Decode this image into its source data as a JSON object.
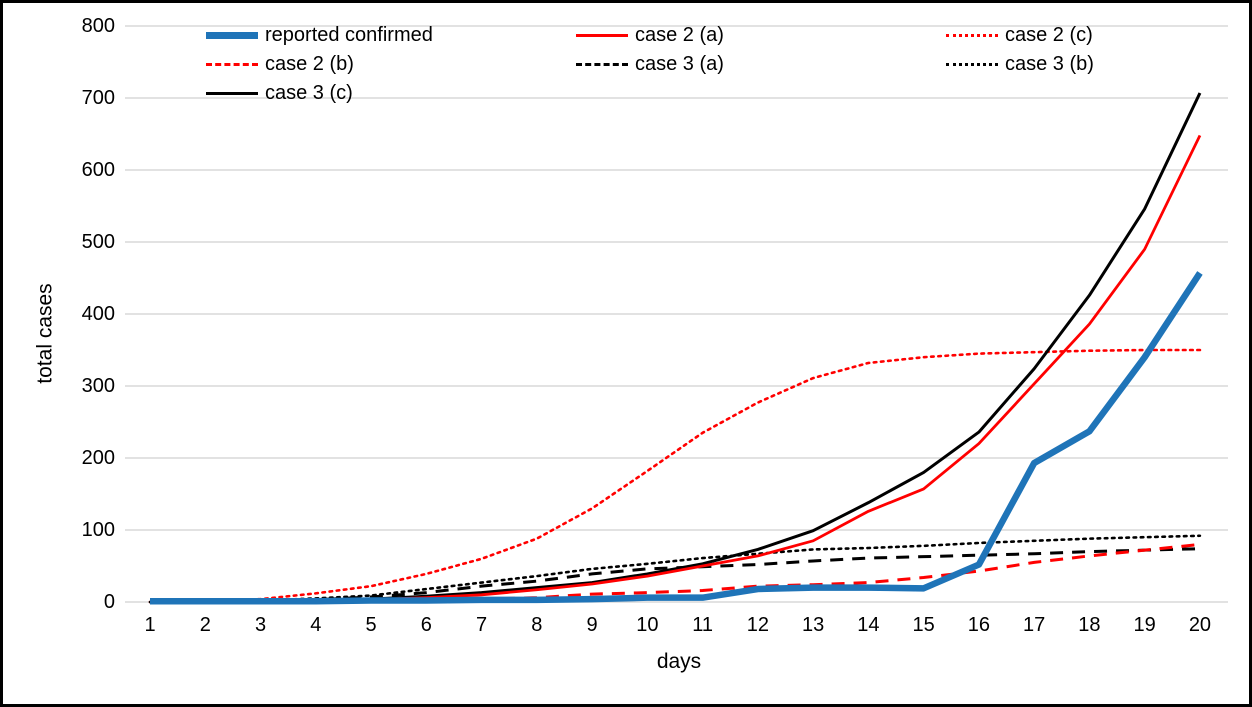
{
  "chart_data": {
    "type": "line",
    "title": "",
    "xlabel": "days",
    "ylabel": "total cases",
    "x_ticks": [
      1,
      2,
      3,
      4,
      5,
      6,
      7,
      8,
      9,
      10,
      11,
      12,
      13,
      14,
      15,
      16,
      17,
      18,
      19,
      20
    ],
    "y_ticks": [
      0,
      100,
      200,
      300,
      400,
      500,
      600,
      700,
      800
    ],
    "ylim": [
      0,
      800
    ],
    "xlim": [
      1,
      20
    ],
    "grid": "horizontal",
    "legend_position": "top-inside",
    "colors": {
      "blue": "#1F74B8",
      "red": "#FF0000",
      "black": "#000000",
      "gridline": "#D9D9D9"
    },
    "series": [
      {
        "name": "case 2 (c)",
        "color": "#FF0000",
        "line_style": "dotted",
        "line_width": 2.6,
        "legend": {
          "col": 2,
          "row": 0
        },
        "values": [
          0,
          1,
          4,
          12,
          22,
          39,
          60,
          88,
          130,
          182,
          235,
          277,
          311,
          332,
          340,
          345,
          347,
          349,
          350,
          350
        ]
      },
      {
        "name": "case 3 (b)",
        "color": "#000000",
        "line_style": "dotted",
        "line_width": 2.6,
        "legend": {
          "col": 2,
          "row": 1
        },
        "values": [
          0,
          1,
          2,
          5,
          9,
          18,
          27,
          36,
          46,
          53,
          61,
          67,
          73,
          75,
          78,
          82,
          85,
          88,
          90,
          92
        ]
      },
      {
        "name": "case 3 (a)",
        "color": "#000000",
        "line_style": "dashed",
        "line_width": 3,
        "legend": {
          "col": 1,
          "row": 1
        },
        "values": [
          0,
          0,
          1,
          3,
          7,
          13,
          22,
          29,
          39,
          46,
          49,
          52,
          57,
          61,
          63,
          65,
          67,
          70,
          72,
          74
        ]
      },
      {
        "name": "case 2 (b)",
        "color": "#FF0000",
        "line_style": "dashed",
        "line_width": 3,
        "legend": {
          "col": 0,
          "row": 1
        },
        "values": [
          0,
          0,
          0,
          1,
          2,
          3,
          4,
          6,
          11,
          13,
          16,
          22,
          24,
          27,
          34,
          43,
          55,
          64,
          72,
          80
        ]
      },
      {
        "name": "case 3 (c)",
        "color": "#000000",
        "line_style": "solid",
        "line_width": 3,
        "legend": {
          "col": 0,
          "row": 2
        },
        "values": [
          0,
          0,
          1,
          2,
          4,
          8,
          13,
          20,
          27,
          39,
          53,
          73,
          99,
          138,
          180,
          236,
          324,
          426,
          546,
          707
        ]
      },
      {
        "name": "case 2 (a)",
        "color": "#FF0000",
        "line_style": "solid",
        "line_width": 2.8,
        "legend": {
          "col": 1,
          "row": 0
        },
        "values": [
          0,
          0,
          1,
          1,
          3,
          6,
          10,
          17,
          25,
          36,
          50,
          64,
          85,
          126,
          157,
          220,
          303,
          386,
          490,
          648
        ]
      },
      {
        "name": "reported confirmed",
        "color": "#1F74B8",
        "line_style": "solid",
        "line_width": 6.5,
        "legend": {
          "col": 0,
          "row": 0
        },
        "values": [
          1,
          1,
          1,
          1,
          2,
          2,
          3,
          3,
          4,
          6,
          6,
          18,
          20,
          20,
          19,
          52,
          193,
          237,
          340,
          457
        ]
      }
    ]
  }
}
